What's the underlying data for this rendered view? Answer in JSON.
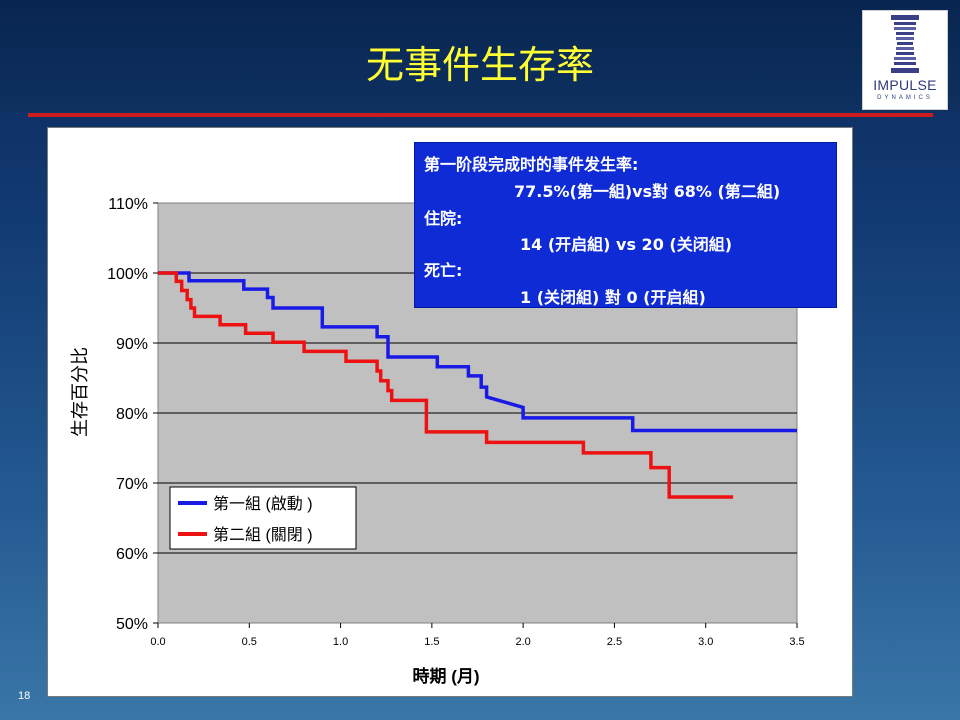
{
  "slide": {
    "title": "无事件生存率",
    "page_number": "18"
  },
  "logo": {
    "word": "IMPULSE",
    "sub": "DYNAMICS"
  },
  "infobox": {
    "line1": "第一阶段完成时的事件发生率:",
    "line2": "77.5%(第一組)vs對 68% (第二組)",
    "line3": "住院:",
    "line4": "14 (开启組) vs 20 (关闭組)",
    "line5": "死亡:",
    "line6": "1 (关闭組) 對 0 (开启組)"
  },
  "colors": {
    "series1": "#1a1ae6",
    "series2": "#ee1111",
    "plot_bg": "#c0c0c0",
    "infobox_bg": "#0f2bd6",
    "title": "#ffff33"
  },
  "chart_data": {
    "type": "line",
    "step": true,
    "xlabel": "時期 (月)",
    "ylabel": "生存百分比",
    "xlim": [
      0.0,
      3.5
    ],
    "ylim": [
      50,
      110
    ],
    "x_ticks": [
      "0.0",
      "0.5",
      "1.0",
      "1.5",
      "2.0",
      "2.5",
      "3.0",
      "3.5"
    ],
    "y_ticks": [
      "50%",
      "60%",
      "70%",
      "80%",
      "90%",
      "100%",
      "110%"
    ],
    "grid": "horizontal",
    "legend": "bottom-left",
    "series": [
      {
        "name": "第一組 (啟動 )",
        "color": "#1a1ae6",
        "points": [
          [
            0.0,
            100
          ],
          [
            0.17,
            100
          ],
          [
            0.17,
            98.9
          ],
          [
            0.47,
            98.9
          ],
          [
            0.47,
            97.7
          ],
          [
            0.6,
            97.7
          ],
          [
            0.6,
            96.5
          ],
          [
            0.63,
            96.5
          ],
          [
            0.63,
            95.0
          ],
          [
            0.9,
            95.0
          ],
          [
            0.9,
            92.3
          ],
          [
            1.2,
            92.3
          ],
          [
            1.2,
            90.9
          ],
          [
            1.26,
            90.9
          ],
          [
            1.26,
            88.0
          ],
          [
            1.53,
            88.0
          ],
          [
            1.53,
            86.6
          ],
          [
            1.7,
            86.6
          ],
          [
            1.7,
            85.3
          ],
          [
            1.77,
            85.3
          ],
          [
            1.77,
            83.7
          ],
          [
            1.8,
            83.7
          ],
          [
            1.8,
            82.3
          ],
          [
            2.0,
            80.8
          ],
          [
            2.0,
            79.3
          ],
          [
            2.6,
            79.3
          ],
          [
            2.6,
            77.5
          ],
          [
            3.5,
            77.5
          ]
        ]
      },
      {
        "name": "第二組 (關閉 )",
        "color": "#ee1111",
        "points": [
          [
            0.0,
            100
          ],
          [
            0.1,
            100
          ],
          [
            0.1,
            98.8
          ],
          [
            0.13,
            98.8
          ],
          [
            0.13,
            97.5
          ],
          [
            0.16,
            97.5
          ],
          [
            0.16,
            96.2
          ],
          [
            0.18,
            96.2
          ],
          [
            0.18,
            95.0
          ],
          [
            0.2,
            95.0
          ],
          [
            0.2,
            93.8
          ],
          [
            0.34,
            93.8
          ],
          [
            0.34,
            92.6
          ],
          [
            0.48,
            92.6
          ],
          [
            0.48,
            91.4
          ],
          [
            0.63,
            91.4
          ],
          [
            0.63,
            90.1
          ],
          [
            0.8,
            90.1
          ],
          [
            0.8,
            88.8
          ],
          [
            1.03,
            88.8
          ],
          [
            1.03,
            87.4
          ],
          [
            1.2,
            87.4
          ],
          [
            1.2,
            86.0
          ],
          [
            1.22,
            86.0
          ],
          [
            1.22,
            84.6
          ],
          [
            1.26,
            84.6
          ],
          [
            1.26,
            83.2
          ],
          [
            1.28,
            83.2
          ],
          [
            1.28,
            81.8
          ],
          [
            1.47,
            81.8
          ],
          [
            1.47,
            77.3
          ],
          [
            1.8,
            77.3
          ],
          [
            1.8,
            75.8
          ],
          [
            2.33,
            75.8
          ],
          [
            2.33,
            74.3
          ],
          [
            2.7,
            74.3
          ],
          [
            2.7,
            72.2
          ],
          [
            2.8,
            72.2
          ],
          [
            2.8,
            68.0
          ],
          [
            3.15,
            68.0
          ]
        ]
      }
    ]
  }
}
